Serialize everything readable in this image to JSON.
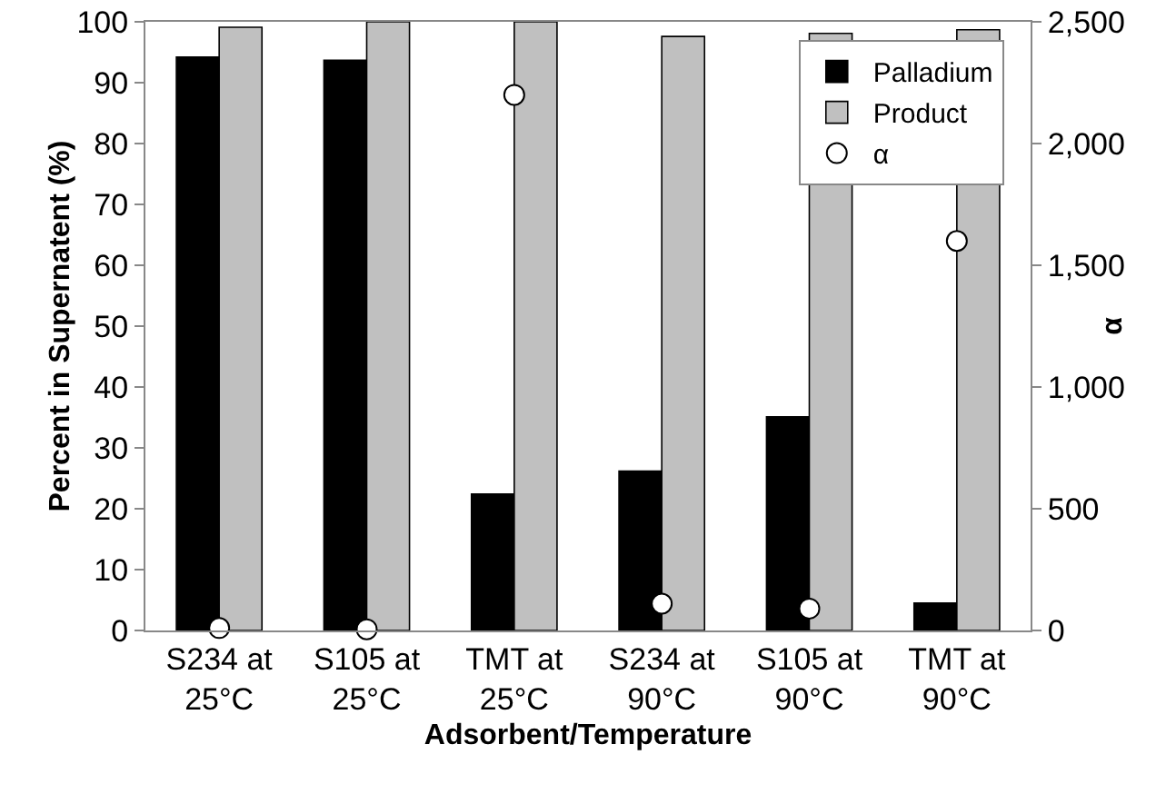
{
  "chart_data": {
    "type": "bar",
    "xlabel": "Adsorbent/Temperature",
    "ylabel": "Percent in Supernatent (%)",
    "y2label": "α",
    "categories": [
      "S234 at 25°C",
      "S105 at 25°C",
      "TMT at 25°C",
      "S234 at 90°C",
      "S105 at 90°C",
      "TMT at 90°C"
    ],
    "series": [
      {
        "name": "Palladium",
        "color": "#000000",
        "values": [
          94.2,
          93.7,
          22.4,
          26.2,
          35.1,
          4.5
        ]
      },
      {
        "name": "Product",
        "color": "#c0c0c0",
        "values": [
          99.1,
          100,
          100,
          97.6,
          98.1,
          98.7
        ]
      },
      {
        "name": "α",
        "type": "scatter",
        "axis": "y2",
        "color": "#ffffff",
        "x": [
          "S234 at 25°C",
          "S105 at 25°C",
          "TMT at 25°C",
          "S234 at 90°C",
          "S105 at 90°C",
          "TMT at 90°C"
        ],
        "values": [
          10,
          5,
          2200,
          110,
          90,
          1600
        ]
      }
    ],
    "ylim": [
      0,
      100
    ],
    "yticks": [
      0,
      10,
      20,
      30,
      40,
      50,
      60,
      70,
      80,
      90,
      100
    ],
    "y2lim": [
      0,
      2500
    ],
    "y2ticks": [
      {
        "value": 0,
        "label": "0"
      },
      {
        "value": 500,
        "label": "500"
      },
      {
        "value": 1000,
        "label": "1,000"
      },
      {
        "value": 1500,
        "label": "1,500"
      },
      {
        "value": 2000,
        "label": "2,000"
      },
      {
        "value": 2500,
        "label": "2,500"
      }
    ],
    "marker": "circle",
    "grid": false,
    "legend": "top right"
  }
}
